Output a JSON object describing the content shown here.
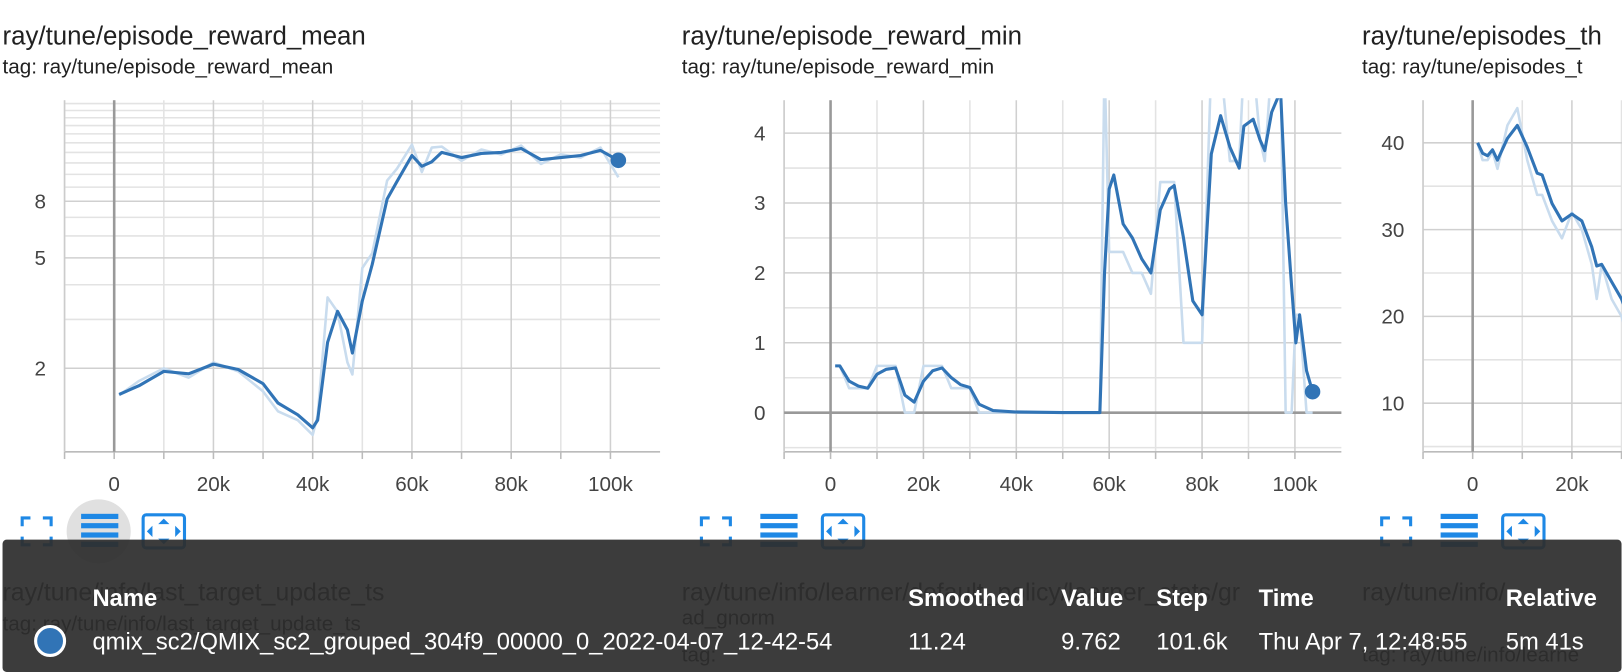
{
  "chart_data": [
    {
      "type": "line",
      "title": "ray/tune/episode_reward_mean",
      "subtitle": "tag: ray/tune/episode_reward_mean",
      "log_y": true,
      "grid": true,
      "x": [
        1000,
        5000,
        10000,
        15000,
        20000,
        25000,
        30000,
        33000,
        37000,
        40000,
        41000,
        43000,
        45000,
        47000,
        48000,
        50000,
        52000,
        55000,
        57000,
        60000,
        62000,
        64000,
        66000,
        70000,
        74000,
        78000,
        82000,
        86000,
        90000,
        94000,
        98000,
        101600
      ],
      "series": [
        {
          "color": "#c9dcee",
          "values": [
            1.6,
            1.8,
            2.0,
            1.85,
            2.1,
            1.95,
            1.65,
            1.4,
            1.3,
            1.15,
            1.35,
            3.6,
            3.2,
            2.1,
            1.9,
            4.6,
            5.2,
            9.5,
            10.5,
            12.8,
            10.2,
            12.5,
            12.6,
            11.2,
            12.3,
            11.8,
            12.7,
            10.9,
            11.8,
            11.5,
            12.5,
            9.762
          ]
        },
        {
          "color": "#3174b6",
          "values": [
            1.61,
            1.73,
            1.95,
            1.91,
            2.07,
            1.98,
            1.76,
            1.5,
            1.36,
            1.22,
            1.3,
            2.48,
            3.21,
            2.75,
            2.27,
            3.5,
            4.74,
            8.15,
            9.44,
            11.7,
            10.7,
            11.1,
            12,
            11.5,
            11.9,
            12,
            12.4,
            11.3,
            11.5,
            11.7,
            12.2,
            11.24
          ]
        }
      ],
      "xlim": [
        -10000,
        110000
      ],
      "ylim": [
        1,
        18.5
      ],
      "xticks": [
        0,
        {
          "value": 20000,
          "label": "20k"
        },
        {
          "value": 40000,
          "label": "40k"
        },
        {
          "value": 60000,
          "label": "60k"
        },
        {
          "value": 80000,
          "label": "80k"
        },
        {
          "value": 100000,
          "label": "100k"
        }
      ],
      "yticks": [
        2,
        5,
        8
      ],
      "minor_xticks": [
        -10000,
        10000,
        30000,
        50000,
        70000,
        90000
      ],
      "minor_yticks": [
        1,
        3,
        4,
        6,
        7,
        9,
        10,
        11,
        12,
        13,
        14,
        15,
        16,
        17,
        18
      ]
    },
    {
      "type": "line",
      "title": "ray/tune/episode_reward_min",
      "subtitle": "tag: ray/tune/episode_reward_min",
      "log_y": false,
      "grid": true,
      "x": [
        1000,
        2000,
        4000,
        6000,
        8000,
        10000,
        12000,
        14000,
        16000,
        18000,
        20000,
        22000,
        24000,
        26000,
        28000,
        30000,
        32000,
        35000,
        40000,
        50000,
        58000,
        59000,
        60000,
        61000,
        63000,
        65000,
        67000,
        69000,
        71000,
        73000,
        74000,
        76000,
        78000,
        80000,
        82000,
        84000,
        86000,
        88000,
        89000,
        91000,
        92500,
        93500,
        95000,
        96900,
        98000,
        99300,
        100200,
        101000,
        102500,
        103800
      ],
      "series": [
        {
          "color": "#c9dcee",
          "values": [
            0.67,
            0.67,
            0.35,
            0.35,
            0.35,
            0.67,
            0.67,
            0.67,
            0,
            0,
            0.67,
            0.67,
            0.67,
            0.35,
            0.35,
            0.35,
            0,
            0,
            0,
            0,
            0,
            5,
            2.3,
            2.3,
            2.3,
            2,
            2,
            1.7,
            3.3,
            3.3,
            3.3,
            1,
            1,
            1,
            5,
            5,
            3.6,
            3.6,
            5,
            5,
            3.9,
            3.6,
            5,
            5,
            0,
            0,
            1.4,
            1.4,
            0,
            0
          ]
        },
        {
          "color": "#3174b6",
          "values": [
            0.67,
            0.67,
            0.45,
            0.38,
            0.35,
            0.55,
            0.62,
            0.64,
            0.25,
            0.15,
            0.45,
            0.6,
            0.64,
            0.5,
            0.4,
            0.36,
            0.12,
            0.03,
            0.01,
            0,
            0,
            2.0,
            3.2,
            3.4,
            2.7,
            2.5,
            2.2,
            2.0,
            2.9,
            3.2,
            3.25,
            2.5,
            1.6,
            1.4,
            3.7,
            4.25,
            3.8,
            3.5,
            4.1,
            4.2,
            3.9,
            3.75,
            4.3,
            4.6,
            3.0,
            1.8,
            1.0,
            1.4,
            0.6,
            0.3
          ]
        }
      ],
      "xlim": [
        -10000,
        110000
      ],
      "ylim": [
        -0.56,
        4.47
      ],
      "xticks": [
        0,
        {
          "value": 20000,
          "label": "20k"
        },
        {
          "value": 40000,
          "label": "40k"
        },
        {
          "value": 60000,
          "label": "60k"
        },
        {
          "value": 80000,
          "label": "80k"
        },
        {
          "value": 100000,
          "label": "100k"
        }
      ],
      "yticks": [
        0,
        1,
        2,
        3,
        4
      ],
      "minor_xticks": [
        -10000,
        10000,
        30000,
        50000,
        70000,
        90000
      ],
      "minor_yticks": [
        -0.5,
        0.5,
        1.5,
        2.5,
        3.5
      ]
    },
    {
      "type": "line",
      "title": "ray/tune/episodes_th",
      "subtitle": "tag: ray/tune/episodes_t",
      "log_y": false,
      "grid": true,
      "x": [
        1000,
        2000,
        3000,
        4000,
        5000,
        7000,
        9000,
        11000,
        13000,
        14000,
        16000,
        18000,
        20000,
        22000,
        24000,
        25000,
        26000,
        28000,
        30000,
        31000,
        33000,
        34000,
        35000
      ],
      "series": [
        {
          "color": "#c9dcee",
          "values": [
            40,
            38,
            38,
            39,
            37,
            42,
            44,
            38,
            34,
            34,
            31,
            29,
            32,
            30,
            26,
            22,
            26,
            22,
            20,
            18,
            18,
            20,
            19
          ]
        },
        {
          "color": "#3174b6",
          "values": [
            40,
            38.8,
            38.5,
            39.2,
            38,
            40.5,
            42,
            39.5,
            36.5,
            36.3,
            33,
            31,
            31.8,
            31,
            28,
            25.8,
            26,
            24,
            22,
            20.5,
            19.5,
            19.8,
            19.3
          ]
        }
      ],
      "xlim": [
        -10000,
        110000
      ],
      "ylim": [
        4.4,
        44.9
      ],
      "xticks": [
        0,
        {
          "value": 20000,
          "label": "20k"
        }
      ],
      "yticks": [
        10,
        20,
        30,
        40
      ],
      "minor_xticks": [
        -10000,
        10000,
        30000
      ],
      "minor_yticks": [
        5,
        15,
        25,
        35
      ]
    }
  ],
  "background_panels": [
    {
      "lines": [
        "ray/tune/info/last_target_update_ts",
        "tag: ray/tune/info/last_target_update_ts"
      ]
    },
    {
      "lines": [
        "ray/tune/info/learner/default_policy/learner_stats/gr",
        "ad_gnorm",
        "tag:"
      ]
    },
    {
      "lines": [
        "ray/tune/info/",
        "tag: ray/tune/info/learne"
      ]
    }
  ],
  "tooltip": {
    "color": "#3174b6",
    "columns": [
      "Name",
      "Smoothed",
      "Value",
      "Step",
      "Time",
      "Relative"
    ],
    "rows": [
      [
        "qmix_sc2/QMIX_sc2_grouped_304f9_00000_0_2022-04-07_12-42-54",
        "11.24",
        "9.762",
        "101.6k",
        "Thu Apr 7, 12:48:55",
        "5m 41s"
      ]
    ]
  }
}
